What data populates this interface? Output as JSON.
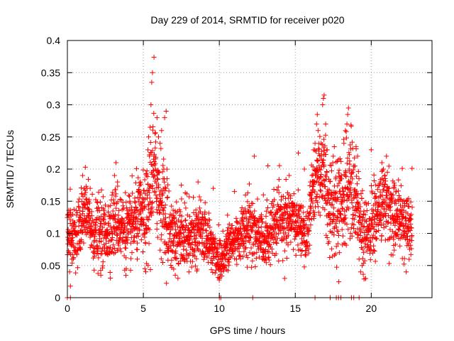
{
  "chart_data": {
    "type": "scatter",
    "title": "Day 229 of 2014, SRMTID for receiver p020",
    "xlabel": "GPS time / hours",
    "ylabel": "SRMTID / TECUs",
    "xlim": [
      0,
      24
    ],
    "ylim": [
      0,
      0.4
    ],
    "x_ticks": [
      0,
      5,
      10,
      15,
      20
    ],
    "x_tick_labels": [
      "0",
      "5",
      "10",
      "15",
      "20"
    ],
    "y_ticks": [
      0,
      0.05,
      0.1,
      0.15,
      0.2,
      0.25,
      0.3,
      0.35,
      0.4
    ],
    "y_tick_labels": [
      "0",
      "0.05",
      "0.1",
      "0.15",
      "0.2",
      "0.25",
      "0.3",
      "0.35",
      "0.4"
    ],
    "grid": true,
    "marker": "+",
    "color": "#ff0000",
    "trend": [
      {
        "x": 0.0,
        "y": 0.11
      },
      {
        "x": 0.3,
        "y": 0.09
      },
      {
        "x": 0.7,
        "y": 0.1
      },
      {
        "x": 1.2,
        "y": 0.13
      },
      {
        "x": 1.7,
        "y": 0.1
      },
      {
        "x": 2.5,
        "y": 0.1
      },
      {
        "x": 3.2,
        "y": 0.12
      },
      {
        "x": 4.0,
        "y": 0.1
      },
      {
        "x": 4.7,
        "y": 0.13
      },
      {
        "x": 5.3,
        "y": 0.12
      },
      {
        "x": 5.6,
        "y": 0.2
      },
      {
        "x": 6.3,
        "y": 0.14
      },
      {
        "x": 7.0,
        "y": 0.09
      },
      {
        "x": 8.0,
        "y": 0.1
      },
      {
        "x": 9.0,
        "y": 0.1
      },
      {
        "x": 10.0,
        "y": 0.06
      },
      {
        "x": 11.0,
        "y": 0.09
      },
      {
        "x": 12.0,
        "y": 0.11
      },
      {
        "x": 13.0,
        "y": 0.09
      },
      {
        "x": 14.0,
        "y": 0.12
      },
      {
        "x": 15.0,
        "y": 0.12
      },
      {
        "x": 15.8,
        "y": 0.1
      },
      {
        "x": 16.2,
        "y": 0.18
      },
      {
        "x": 16.8,
        "y": 0.2
      },
      {
        "x": 17.3,
        "y": 0.14
      },
      {
        "x": 18.0,
        "y": 0.14
      },
      {
        "x": 18.6,
        "y": 0.18
      },
      {
        "x": 19.2,
        "y": 0.14
      },
      {
        "x": 19.5,
        "y": 0.08
      },
      {
        "x": 20.0,
        "y": 0.11
      },
      {
        "x": 20.8,
        "y": 0.15
      },
      {
        "x": 21.5,
        "y": 0.13
      },
      {
        "x": 22.0,
        "y": 0.12
      },
      {
        "x": 22.7,
        "y": 0.11
      }
    ],
    "band": [
      {
        "x": 0,
        "s": 0.03
      },
      {
        "x": 5,
        "s": 0.035
      },
      {
        "x": 5.5,
        "s": 0.06
      },
      {
        "x": 7,
        "s": 0.03
      },
      {
        "x": 10,
        "s": 0.025
      },
      {
        "x": 13,
        "s": 0.03
      },
      {
        "x": 15.8,
        "s": 0.025
      },
      {
        "x": 16.5,
        "s": 0.045
      },
      {
        "x": 18.5,
        "s": 0.05
      },
      {
        "x": 19.5,
        "s": 0.04
      },
      {
        "x": 22.7,
        "s": 0.03
      }
    ],
    "series": [
      {
        "name": "SRMTID",
        "x": [
          0.05,
          0.1,
          0.15,
          0.2,
          0.3,
          1.0,
          1.1,
          1.15,
          1.2,
          1.3,
          1.4,
          1.5,
          2.2,
          3.1,
          3.2,
          3.3,
          4.6,
          4.7,
          4.8,
          5.1,
          5.2,
          5.3,
          5.35,
          5.4,
          5.45,
          5.5,
          5.55,
          5.6,
          5.7,
          5.8,
          5.9,
          6.0,
          6.1,
          6.2,
          6.3,
          6.35,
          6.4,
          6.5,
          7.1,
          7.5,
          8.0,
          8.6,
          9.6,
          10.0,
          10.6,
          11.0,
          12.3,
          12.9,
          13.2,
          14.3,
          14.6,
          15.2,
          15.6,
          16.0,
          16.1,
          16.2,
          16.3,
          16.4,
          16.45,
          16.5,
          16.6,
          16.7,
          16.8,
          16.85,
          16.9,
          17.0,
          17.1,
          17.2,
          17.5,
          17.6,
          17.9,
          18.0,
          18.2,
          18.3,
          18.4,
          18.45,
          18.5,
          18.55,
          18.6,
          18.7,
          19.0,
          19.1,
          19.2,
          19.3,
          19.4,
          19.5,
          20.0,
          20.6,
          20.7,
          20.8,
          20.9,
          21.0,
          21.5,
          21.7,
          22.0,
          22.3,
          22.5,
          0.0,
          0.2,
          10.0,
          10.1,
          12.2,
          16.3,
          17.3,
          17.7,
          17.85,
          18.0,
          18.7,
          18.85,
          19.2
        ],
        "y": [
          0.13,
          0.07,
          0.04,
          0.018,
          0.06,
          0.19,
          0.17,
          0.16,
          0.14,
          0.17,
          0.15,
          0.17,
          0.035,
          0.19,
          0.21,
          0.18,
          0.06,
          0.15,
          0.16,
          0.045,
          0.19,
          0.23,
          0.25,
          0.22,
          0.265,
          0.3,
          0.335,
          0.35,
          0.374,
          0.2,
          0.28,
          0.25,
          0.24,
          0.26,
          0.185,
          0.2,
          0.28,
          0.29,
          0.035,
          0.175,
          0.04,
          0.18,
          0.17,
          0.03,
          0.1,
          0.165,
          0.22,
          0.16,
          0.205,
          0.03,
          0.19,
          0.225,
          0.2,
          0.18,
          0.19,
          0.23,
          0.24,
          0.27,
          0.285,
          0.26,
          0.2,
          0.24,
          0.3,
          0.31,
          0.315,
          0.27,
          0.23,
          0.16,
          0.22,
          0.11,
          0.07,
          0.13,
          0.24,
          0.26,
          0.27,
          0.285,
          0.295,
          0.2,
          0.18,
          0.16,
          0.235,
          0.22,
          0.06,
          0.04,
          0.05,
          0.07,
          0.23,
          0.18,
          0.21,
          0.2,
          0.19,
          0.22,
          0.17,
          0.135,
          0.13,
          0.04,
          0.12,
          0,
          0,
          0,
          0,
          0,
          0,
          0,
          0,
          0,
          0,
          0,
          0,
          0
        ]
      }
    ]
  }
}
